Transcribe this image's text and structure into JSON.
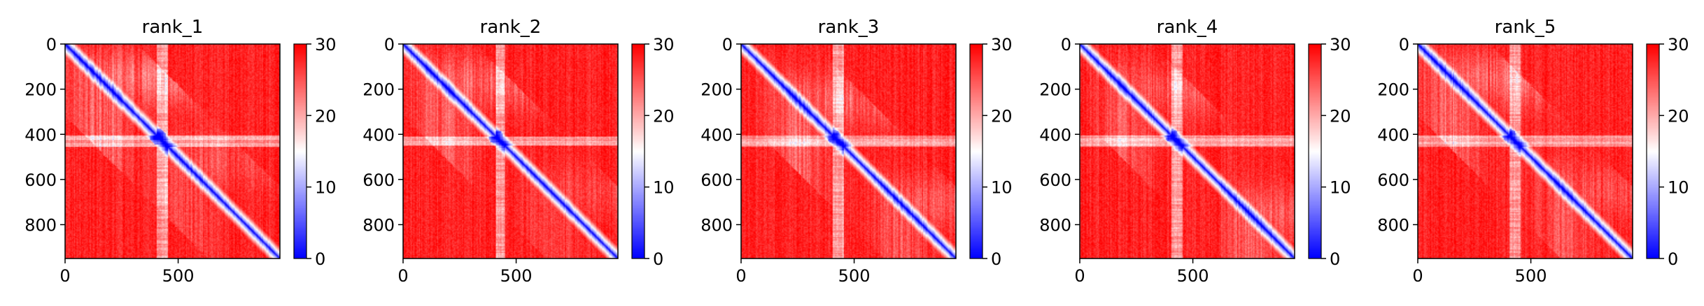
{
  "chart_data": [
    {
      "type": "heatmap",
      "title": "rank_1",
      "xlabel": "",
      "ylabel": "",
      "x_ticks": [
        0,
        500
      ],
      "y_ticks": [
        0,
        200,
        400,
        600,
        800
      ],
      "xlim": [
        0,
        950
      ],
      "ylim": [
        950,
        0
      ],
      "colorbar": {
        "ticks": [
          0,
          10,
          20,
          30
        ],
        "range": [
          0,
          30
        ],
        "cmap": "bwr"
      },
      "matrix_size": 950,
      "features": {
        "diagonal_value": 0,
        "background_value": 28,
        "blue_blob": {
          "center": 410,
          "halfwidth": 35
        },
        "light_band": {
          "center": 430,
          "width": 55
        },
        "texture": [
          {
            "center": 150,
            "strength": 0.6
          },
          {
            "center": 520,
            "strength": 0.3
          }
        ]
      }
    },
    {
      "type": "heatmap",
      "title": "rank_2",
      "xlabel": "",
      "ylabel": "",
      "x_ticks": [
        0,
        500
      ],
      "y_ticks": [
        0,
        200,
        400,
        600,
        800
      ],
      "xlim": [
        0,
        950
      ],
      "ylim": [
        950,
        0
      ],
      "colorbar": {
        "ticks": [
          0,
          10,
          20,
          30
        ],
        "range": [
          0,
          30
        ],
        "cmap": "bwr"
      },
      "matrix_size": 950,
      "features": {
        "diagonal_value": 0,
        "background_value": 28,
        "blue_blob": {
          "center": 410,
          "halfwidth": 32
        },
        "light_band": {
          "center": 430,
          "width": 45
        },
        "texture": [
          {
            "center": 170,
            "strength": 0.5
          },
          {
            "center": 650,
            "strength": 0.25
          }
        ]
      }
    },
    {
      "type": "heatmap",
      "title": "rank_3",
      "xlabel": "",
      "ylabel": "",
      "x_ticks": [
        0,
        500
      ],
      "y_ticks": [
        0,
        200,
        400,
        600,
        800
      ],
      "xlim": [
        0,
        950
      ],
      "ylim": [
        950,
        0
      ],
      "colorbar": {
        "ticks": [
          0,
          10,
          20,
          30
        ],
        "range": [
          0,
          30
        ],
        "cmap": "bwr"
      },
      "matrix_size": 950,
      "features": {
        "diagonal_value": 0,
        "background_value": 28,
        "blue_blob": {
          "center": 410,
          "halfwidth": 30
        },
        "light_band": {
          "center": 430,
          "width": 50
        },
        "texture": [
          {
            "center": 250,
            "strength": 0.5
          },
          {
            "center": 700,
            "strength": 0.4
          }
        ]
      }
    },
    {
      "type": "heatmap",
      "title": "rank_4",
      "xlabel": "",
      "ylabel": "",
      "x_ticks": [
        0,
        500
      ],
      "y_ticks": [
        0,
        200,
        400,
        600,
        800
      ],
      "xlim": [
        0,
        950
      ],
      "ylim": [
        950,
        0
      ],
      "colorbar": {
        "ticks": [
          0,
          10,
          20,
          30
        ],
        "range": [
          0,
          30
        ],
        "cmap": "bwr"
      },
      "matrix_size": 950,
      "features": {
        "diagonal_value": 0,
        "background_value": 28,
        "blue_blob": {
          "center": 405,
          "halfwidth": 30
        },
        "light_band": {
          "center": 430,
          "width": 55
        },
        "texture": [
          {
            "center": 200,
            "strength": 0.4
          },
          {
            "center": 750,
            "strength": 0.45
          }
        ]
      }
    },
    {
      "type": "heatmap",
      "title": "rank_5",
      "xlabel": "",
      "ylabel": "",
      "x_ticks": [
        0,
        500
      ],
      "y_ticks": [
        0,
        200,
        400,
        600,
        800
      ],
      "xlim": [
        0,
        950
      ],
      "ylim": [
        950,
        0
      ],
      "colorbar": {
        "ticks": [
          0,
          10,
          20,
          30
        ],
        "range": [
          0,
          30
        ],
        "cmap": "bwr"
      },
      "matrix_size": 950,
      "features": {
        "diagonal_value": 0,
        "background_value": 28,
        "blue_blob": {
          "center": 405,
          "halfwidth": 30
        },
        "light_band": {
          "center": 430,
          "width": 50
        },
        "texture": [
          {
            "center": 150,
            "strength": 0.55
          },
          {
            "center": 650,
            "strength": 0.35
          }
        ]
      }
    }
  ]
}
